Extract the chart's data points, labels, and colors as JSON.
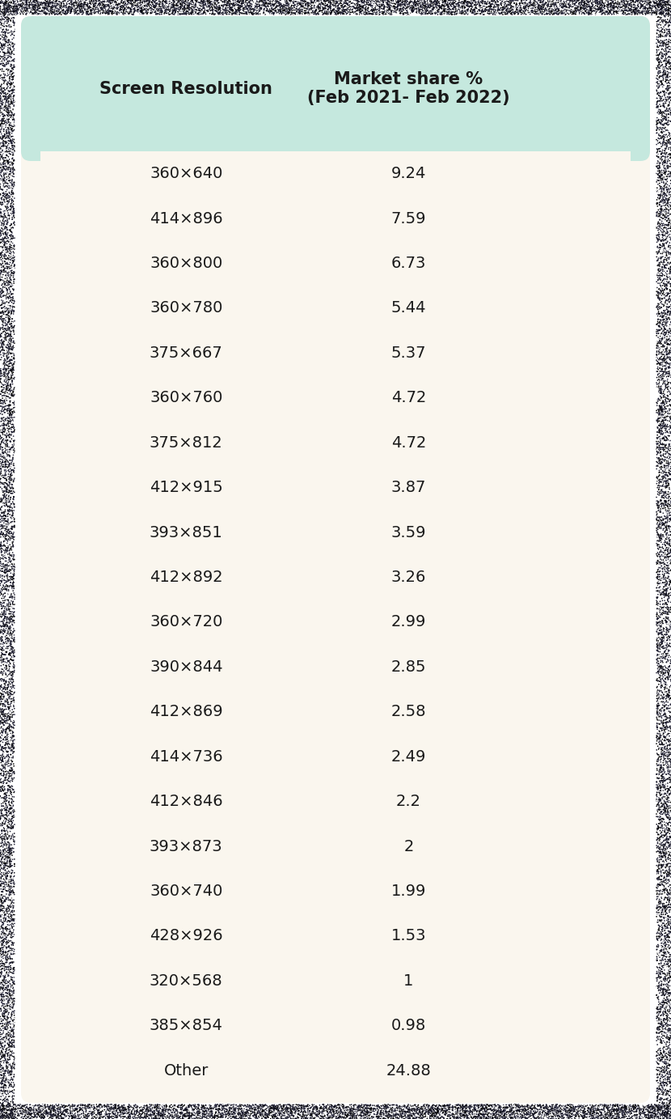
{
  "header": [
    "Screen Resolution",
    "Market share %\n(Feb 2021- Feb 2022)"
  ],
  "rows": [
    [
      "360×640",
      "9.24"
    ],
    [
      "414×896",
      "7.59"
    ],
    [
      "360×800",
      "6.73"
    ],
    [
      "360×780",
      "5.44"
    ],
    [
      "375×667",
      "5.37"
    ],
    [
      "360×760",
      "4.72"
    ],
    [
      "375×812",
      "4.72"
    ],
    [
      "412×915",
      "3.87"
    ],
    [
      "393×851",
      "3.59"
    ],
    [
      "412×892",
      "3.26"
    ],
    [
      "360×720",
      "2.99"
    ],
    [
      "390×844",
      "2.85"
    ],
    [
      "412×869",
      "2.58"
    ],
    [
      "414×736",
      "2.49"
    ],
    [
      "412×846",
      "2.2"
    ],
    [
      "393×873",
      "2"
    ],
    [
      "360×740",
      "1.99"
    ],
    [
      "428×926",
      "1.53"
    ],
    [
      "320×568",
      "1"
    ],
    [
      "385×854",
      "0.98"
    ],
    [
      "Other",
      "24.88"
    ]
  ],
  "bg_color": "#faf6ee",
  "header_bg_color": "#c5e8de",
  "outer_bg": "#ffffff",
  "text_color": "#1a1a1a",
  "header_fontsize": 15,
  "row_fontsize": 14,
  "figsize": [
    8.3,
    13.83
  ],
  "dpi": 100
}
